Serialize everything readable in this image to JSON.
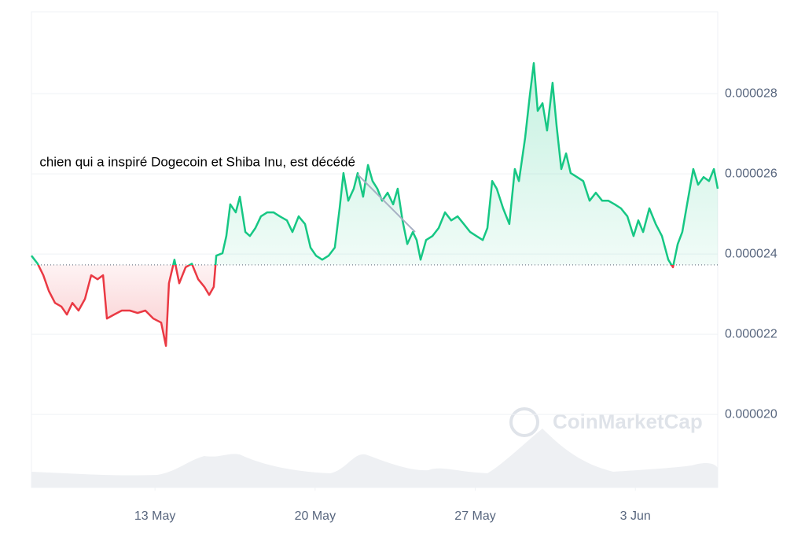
{
  "chart_data": {
    "type": "line",
    "annotation": "chien qui a inspiré Dogecoin et Shiba Inu, est décédé",
    "watermark": "CoinMarketCap",
    "x": [
      0,
      0.27,
      0.52,
      0.76,
      1.03,
      1.31,
      1.55,
      1.79,
      2.06,
      2.34,
      2.61,
      2.89,
      3.13,
      3.3,
      3.61,
      3.95,
      4.3,
      4.64,
      4.98,
      5.33,
      5.67,
      5.88,
      6.01,
      6.25,
      6.46,
      6.74,
      7.01,
      7.29,
      7.56,
      7.77,
      7.97,
      8.08,
      8.35,
      8.52,
      8.69,
      8.93,
      9.11,
      9.35,
      9.55,
      9.79,
      10.03,
      10.31,
      10.58,
      10.86,
      11.17,
      11.41,
      11.68,
      11.96,
      12.2,
      12.44,
      12.71,
      12.99,
      13.26,
      13.47,
      13.64,
      13.85,
      14.09,
      14.26,
      14.5,
      14.71,
      14.91,
      15.12,
      15.33,
      15.57,
      15.81,
      16.01,
      16.22,
      16.43,
      16.67,
      16.84,
      17.01,
      17.25,
      17.53,
      17.8,
      18.08,
      18.35,
      18.63,
      18.9,
      19.18,
      19.45,
      19.73,
      19.93,
      20.14,
      20.34,
      20.62,
      20.89,
      21.13,
      21.31,
      21.58,
      21.79,
      21.96,
      22.13,
      22.34,
      22.54,
      22.78,
      22.96,
      23.16,
      23.37,
      23.57,
      23.85,
      24.12,
      24.4,
      24.67,
      24.95,
      25.22,
      25.5,
      25.77,
      26.05,
      26.32,
      26.53,
      26.74,
      27.01,
      27.29,
      27.56,
      27.84,
      28.04,
      28.25,
      28.45,
      28.66,
      28.93,
      29.14,
      29.38,
      29.62,
      29.83,
      30.0
    ],
    "values": [
      2.396e-05,
      2.376e-05,
      2.347e-05,
      2.308e-05,
      2.278e-05,
      2.269e-05,
      2.249e-05,
      2.278e-05,
      2.259e-05,
      2.288e-05,
      2.347e-05,
      2.337e-05,
      2.347e-05,
      2.239e-05,
      2.249e-05,
      2.259e-05,
      2.259e-05,
      2.253e-05,
      2.259e-05,
      2.239e-05,
      2.229e-05,
      2.171e-05,
      2.327e-05,
      2.386e-05,
      2.327e-05,
      2.367e-05,
      2.376e-05,
      2.337e-05,
      2.318e-05,
      2.298e-05,
      2.318e-05,
      2.396e-05,
      2.402e-05,
      2.445e-05,
      2.524e-05,
      2.504e-05,
      2.543e-05,
      2.455e-05,
      2.445e-05,
      2.465e-05,
      2.494e-05,
      2.504e-05,
      2.504e-05,
      2.494e-05,
      2.484e-05,
      2.455e-05,
      2.494e-05,
      2.475e-05,
      2.416e-05,
      2.396e-05,
      2.386e-05,
      2.396e-05,
      2.416e-05,
      2.514e-05,
      2.602e-05,
      2.533e-05,
      2.563e-05,
      2.602e-05,
      2.543e-05,
      2.622e-05,
      2.582e-05,
      2.563e-05,
      2.533e-05,
      2.553e-05,
      2.524e-05,
      2.563e-05,
      2.484e-05,
      2.425e-05,
      2.455e-05,
      2.435e-05,
      2.386e-05,
      2.435e-05,
      2.445e-05,
      2.465e-05,
      2.504e-05,
      2.484e-05,
      2.494e-05,
      2.475e-05,
      2.455e-05,
      2.445e-05,
      2.435e-05,
      2.465e-05,
      2.582e-05,
      2.563e-05,
      2.514e-05,
      2.475e-05,
      2.612e-05,
      2.582e-05,
      2.69e-05,
      2.798e-05,
      2.876e-05,
      2.757e-05,
      2.776e-05,
      2.708e-05,
      2.827e-05,
      2.718e-05,
      2.612e-05,
      2.651e-05,
      2.602e-05,
      2.592e-05,
      2.582e-05,
      2.533e-05,
      2.553e-05,
      2.533e-05,
      2.533e-05,
      2.524e-05,
      2.514e-05,
      2.494e-05,
      2.445e-05,
      2.484e-05,
      2.455e-05,
      2.514e-05,
      2.475e-05,
      2.445e-05,
      2.386e-05,
      2.367e-05,
      2.425e-05,
      2.455e-05,
      2.524e-05,
      2.612e-05,
      2.573e-05,
      2.592e-05,
      2.582e-05,
      2.612e-05,
      2.563e-05
    ],
    "baseline": 2.373e-05,
    "color_up": "#16c784",
    "color_down": "#ea3943",
    "xlim": [
      0,
      30
    ],
    "xticks": [
      {
        "value": 5.4,
        "label": "13 May"
      },
      {
        "value": 12.4,
        "label": "20 May"
      },
      {
        "value": 19.4,
        "label": "27 May"
      },
      {
        "value": 26.4,
        "label": "3 Jun"
      }
    ],
    "ylim": [
      1.818e-05,
      3.004e-05
    ],
    "yticks": [
      {
        "value": 2e-05,
        "label": "0.000020"
      },
      2.2e-05,
      2.4e-05,
      2.6e-05,
      2.8e-05
    ],
    "grid": true
  }
}
